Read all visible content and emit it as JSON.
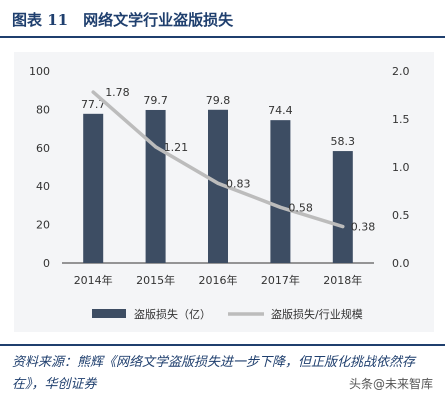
{
  "header": {
    "title": "图表 11　网络文学行业盗版损失"
  },
  "footer": {
    "source": "资料来源：熊辉《网络文学盗版损失进一步下降，但正版化挑战依然存在》，华创证券",
    "watermark": "头条@未来智库"
  },
  "colors": {
    "bar": "#3d4d63",
    "line": "#bcbcbc",
    "accent": "#1f3f6e"
  },
  "chart_data": {
    "type": "bar",
    "categories": [
      "2014年",
      "2015年",
      "2016年",
      "2017年",
      "2018年"
    ],
    "series": [
      {
        "name": "盗版损失（亿）",
        "type": "bar",
        "axis": "left",
        "values": [
          77.7,
          79.7,
          79.8,
          74.4,
          58.3
        ]
      },
      {
        "name": "盗版损失/行业规模",
        "type": "line",
        "axis": "right",
        "values": [
          1.78,
          1.21,
          0.83,
          0.58,
          0.38
        ]
      }
    ],
    "y_left": {
      "min": 0,
      "max": 100,
      "ticks": [
        "0",
        "20",
        "40",
        "60",
        "80",
        "100"
      ]
    },
    "y_right": {
      "min": 0,
      "max": 2.0,
      "ticks": [
        "0.0",
        "0.5",
        "1.0",
        "1.5",
        "2.0"
      ]
    },
    "legend_position": "bottom"
  }
}
